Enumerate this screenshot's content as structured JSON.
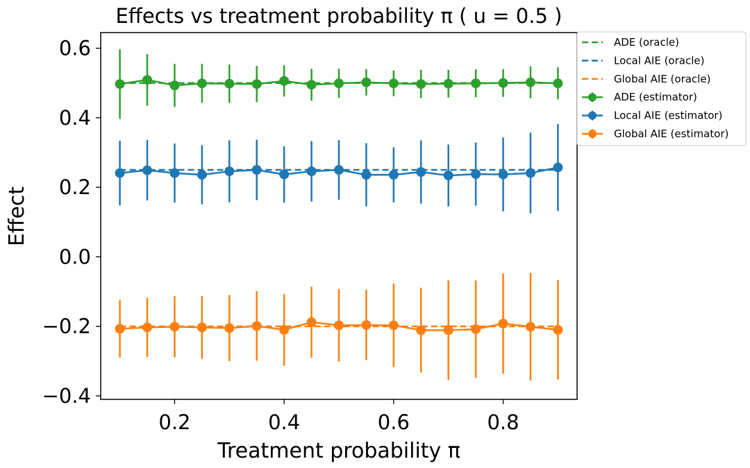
{
  "chart_data": {
    "type": "line",
    "title": "Effects vs treatment probability π ( u = 0.5 )",
    "xlabel": "Treatment probability π",
    "ylabel": "Effect",
    "xlim": [
      0.065,
      0.935
    ],
    "ylim": [
      -0.41,
      0.645
    ],
    "xticks": [
      0.2,
      0.4,
      0.6,
      0.8
    ],
    "xtick_labels": [
      "0.2",
      "0.4",
      "0.6",
      "0.8"
    ],
    "yticks": [
      -0.4,
      -0.2,
      0.0,
      0.2,
      0.4,
      0.6
    ],
    "ytick_labels": [
      "−0.4",
      "−0.2",
      "0.0",
      "0.2",
      "0.4",
      "0.6"
    ],
    "grid": false,
    "legend_position": "outside-top-right",
    "x": [
      0.1,
      0.15,
      0.2,
      0.25,
      0.3,
      0.35,
      0.4,
      0.45,
      0.5,
      0.55,
      0.6,
      0.65,
      0.7,
      0.75,
      0.8,
      0.85,
      0.9
    ],
    "oracle": [
      {
        "name": "ADE (oracle)",
        "color": "#2ca02c",
        "value": 0.5
      },
      {
        "name": "Local AIE (oracle)",
        "color": "#1f77b4",
        "value": 0.25
      },
      {
        "name": "Global AIE (oracle)",
        "color": "#ff7f0e",
        "value": -0.2
      }
    ],
    "series": [
      {
        "name": "ADE (estimator)",
        "color": "#2ca02c",
        "values": [
          0.497,
          0.509,
          0.493,
          0.499,
          0.498,
          0.497,
          0.506,
          0.495,
          0.499,
          0.502,
          0.499,
          0.497,
          0.498,
          0.499,
          0.5,
          0.502,
          0.499
        ],
        "errors": [
          0.1,
          0.074,
          0.062,
          0.056,
          0.055,
          0.052,
          0.045,
          0.046,
          0.042,
          0.038,
          0.037,
          0.041,
          0.04,
          0.04,
          0.04,
          0.046,
          0.046
        ]
      },
      {
        "name": "Local AIE (estimator)",
        "color": "#1f77b4",
        "values": [
          0.241,
          0.249,
          0.241,
          0.236,
          0.246,
          0.25,
          0.237,
          0.246,
          0.25,
          0.236,
          0.236,
          0.244,
          0.234,
          0.238,
          0.237,
          0.241,
          0.257
        ],
        "errors": [
          0.093,
          0.087,
          0.085,
          0.085,
          0.089,
          0.087,
          0.081,
          0.087,
          0.086,
          0.091,
          0.079,
          0.091,
          0.089,
          0.091,
          0.106,
          0.116,
          0.125
        ]
      },
      {
        "name": "Global AIE (estimator)",
        "color": "#ff7f0e",
        "values": [
          -0.207,
          -0.203,
          -0.201,
          -0.203,
          -0.205,
          -0.199,
          -0.21,
          -0.188,
          -0.197,
          -0.196,
          -0.197,
          -0.211,
          -0.211,
          -0.208,
          -0.192,
          -0.201,
          -0.21
        ],
        "errors": [
          0.083,
          0.085,
          0.088,
          0.09,
          0.095,
          0.1,
          0.103,
          0.102,
          0.104,
          0.101,
          0.12,
          0.122,
          0.143,
          0.14,
          0.144,
          0.155,
          0.143
        ]
      }
    ]
  }
}
